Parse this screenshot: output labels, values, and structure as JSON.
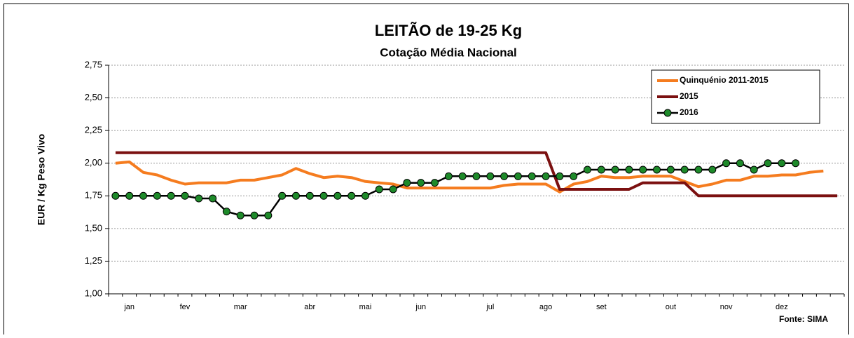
{
  "chart_data": {
    "type": "line",
    "title": "LEITÃO de 19-25 Kg",
    "subtitle": "Cotação Média Nacional",
    "y_label": "EUR / Kg Peso Vivo",
    "source": "Fonte: SIMA",
    "categories": [
      null,
      "jan",
      null,
      null,
      null,
      "fev",
      null,
      null,
      null,
      "mar",
      null,
      null,
      null,
      null,
      "abr",
      null,
      null,
      null,
      "mai",
      null,
      null,
      null,
      "jun",
      null,
      null,
      null,
      null,
      "jul",
      null,
      null,
      null,
      "ago",
      null,
      null,
      null,
      "set",
      null,
      null,
      null,
      null,
      "out",
      null,
      null,
      null,
      "nov",
      null,
      null,
      null,
      "dez",
      null,
      null,
      null,
      null
    ],
    "ylim": [
      1.0,
      2.75
    ],
    "yticks": [
      {
        "value": 1.0,
        "label": "1,00"
      },
      {
        "value": 1.25,
        "label": "1,25"
      },
      {
        "value": 1.5,
        "label": "1,50"
      },
      {
        "value": 1.75,
        "label": "1,75"
      },
      {
        "value": 2.0,
        "label": "2,00"
      },
      {
        "value": 2.25,
        "label": "2,25"
      },
      {
        "value": 2.5,
        "label": "2,50"
      },
      {
        "value": 2.75,
        "label": "2,75"
      }
    ],
    "grid": true,
    "legend": "upper right",
    "series": [
      {
        "name": "Quinquénio 2011-2015",
        "color": "#f57c1f",
        "marker": false,
        "values": [
          2.0,
          2.01,
          1.93,
          1.91,
          1.87,
          1.84,
          1.85,
          1.85,
          1.85,
          1.87,
          1.87,
          1.89,
          1.91,
          1.96,
          1.92,
          1.89,
          1.9,
          1.89,
          1.86,
          1.85,
          1.84,
          1.81,
          1.81,
          1.81,
          1.81,
          1.81,
          1.81,
          1.81,
          1.83,
          1.84,
          1.84,
          1.84,
          1.78,
          1.84,
          1.86,
          1.9,
          1.89,
          1.89,
          1.9,
          1.9,
          1.9,
          1.86,
          1.82,
          1.84,
          1.87,
          1.87,
          1.9,
          1.9,
          1.91,
          1.91,
          1.93,
          1.94,
          null
        ]
      },
      {
        "name": "2015",
        "color": "#7b1010",
        "marker": false,
        "values": [
          2.08,
          2.08,
          2.08,
          2.08,
          2.08,
          2.08,
          2.08,
          2.08,
          2.08,
          2.08,
          2.08,
          2.08,
          2.08,
          2.08,
          2.08,
          2.08,
          2.08,
          2.08,
          2.08,
          2.08,
          2.08,
          2.08,
          2.08,
          2.08,
          2.08,
          2.08,
          2.08,
          2.08,
          2.08,
          2.08,
          2.08,
          2.08,
          1.8,
          1.8,
          1.8,
          1.8,
          1.8,
          1.8,
          1.85,
          1.85,
          1.85,
          1.85,
          1.75,
          1.75,
          1.75,
          1.75,
          1.75,
          1.75,
          1.75,
          1.75,
          1.75,
          1.75,
          1.75
        ]
      },
      {
        "name": "2016",
        "color": "#000000",
        "marker": true,
        "marker_color": "#1e8a2a",
        "values": [
          1.75,
          1.75,
          1.75,
          1.75,
          1.75,
          1.75,
          1.73,
          1.73,
          1.63,
          1.6,
          1.6,
          1.6,
          1.75,
          1.75,
          1.75,
          1.75,
          1.75,
          1.75,
          1.75,
          1.8,
          1.8,
          1.85,
          1.85,
          1.85,
          1.9,
          1.9,
          1.9,
          1.9,
          1.9,
          1.9,
          1.9,
          1.9,
          1.9,
          1.9,
          1.95,
          1.95,
          1.95,
          1.95,
          1.95,
          1.95,
          1.95,
          1.95,
          1.95,
          1.95,
          2.0,
          2.0,
          1.95,
          2.0,
          2.0,
          2.0,
          null,
          null,
          null
        ]
      }
    ]
  }
}
